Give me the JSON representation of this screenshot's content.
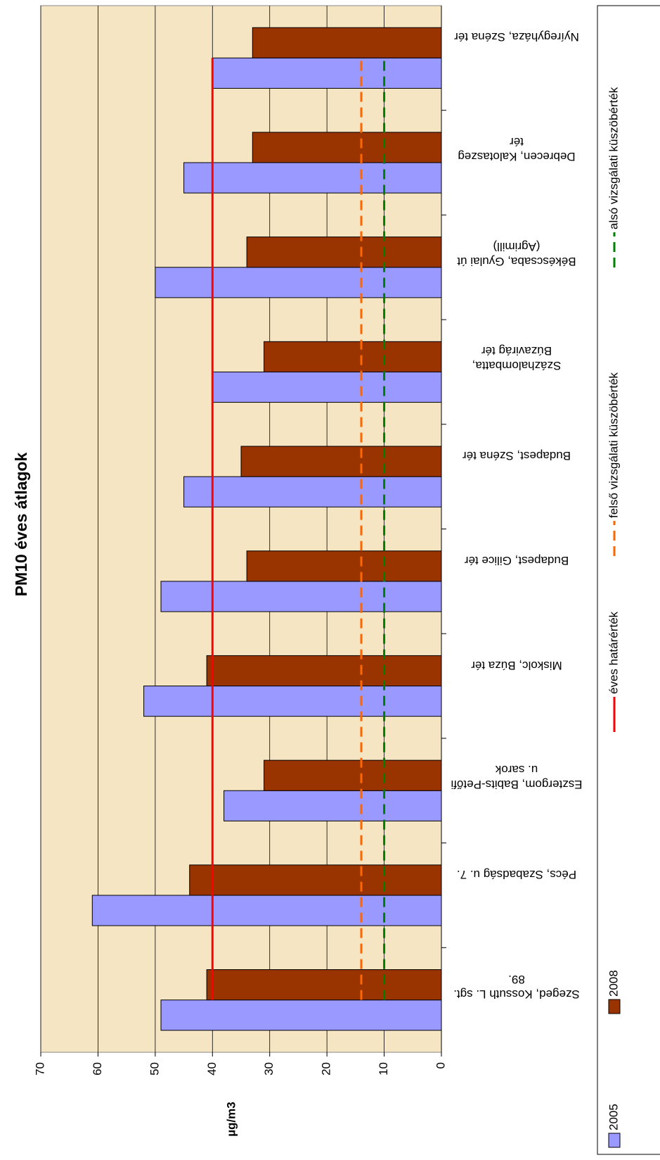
{
  "chart_data": {
    "type": "bar",
    "title": "PM10 éves átlagok",
    "y_label": "µg/m3",
    "categories": [
      "Szeged, Kossuth L. sgt. 89.",
      "Pécs, Szabadság u. 7.",
      "Esztergom, Babits-Petőfi u. sarok",
      "Miskolc, Búza tér",
      "Budapest, Gilice tér",
      "Budapest, Széna tér",
      "Százhalombatta, Búzavirág tér",
      "Békéscsaba, Gyulai út (Agrimill)",
      "Debrecen, Kalotaszeg tér",
      "Nyíregyháza, Széna tér"
    ],
    "series": [
      {
        "name": "2005",
        "type": "bar",
        "color": "#9999ff",
        "values": [
          49,
          61,
          38,
          52,
          49,
          45,
          40,
          50,
          45,
          40
        ]
      },
      {
        "name": "2008",
        "type": "bar",
        "color": "#993300",
        "values": [
          41,
          44,
          31,
          41,
          34,
          35,
          31,
          34,
          33,
          33
        ]
      },
      {
        "name": "éves határérték",
        "type": "line",
        "color": "#ff0000",
        "dashed": false,
        "values": [
          40,
          40,
          40,
          40,
          40,
          40,
          40,
          40,
          40,
          40
        ]
      },
      {
        "name": "felső vizsgálati küszöbérték",
        "type": "line",
        "color": "#ff6600",
        "dashed": true,
        "values": [
          14,
          14,
          14,
          14,
          14,
          14,
          14,
          14,
          14,
          14
        ]
      },
      {
        "name": "alsó vizsgálati küszöbérték",
        "type": "line",
        "color": "#008000",
        "dashed": true,
        "values": [
          10,
          10,
          10,
          10,
          10,
          10,
          10,
          10,
          10,
          10
        ]
      }
    ],
    "ylim": [
      0,
      70
    ],
    "yticks": [
      0,
      10,
      20,
      30,
      40,
      50,
      60,
      70
    ],
    "grid": true
  }
}
